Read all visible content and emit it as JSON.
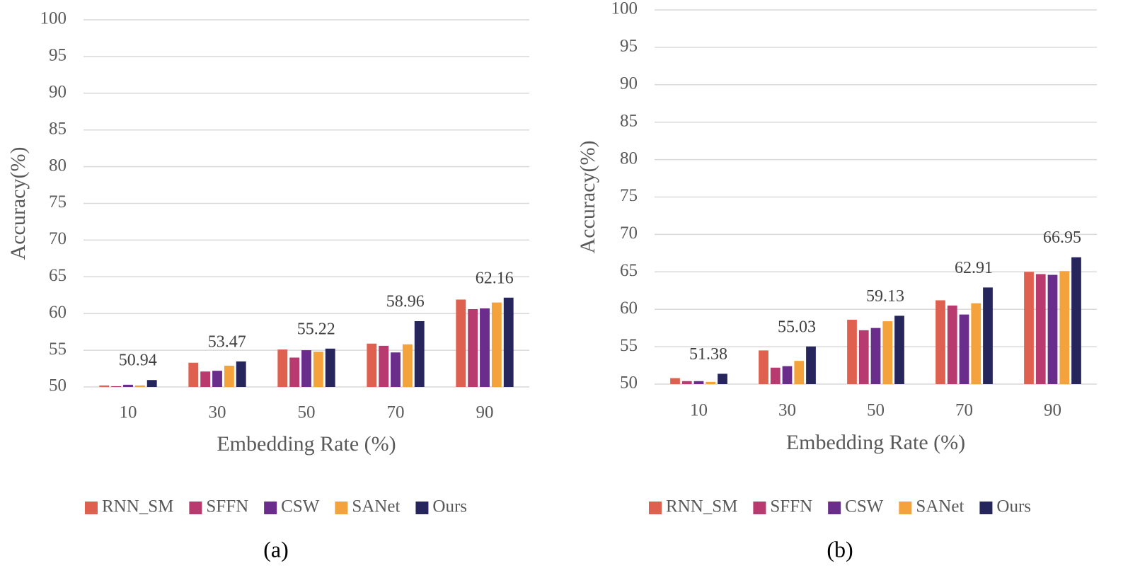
{
  "chart_data": [
    {
      "type": "bar",
      "caption": "(a)",
      "x_label": "Embedding Rate (%)",
      "y_label": "Accuracy(%)",
      "categories": [
        "10",
        "30",
        "50",
        "70",
        "90"
      ],
      "ylim": [
        50,
        100
      ],
      "yticks": [
        50,
        55,
        60,
        65,
        70,
        75,
        80,
        85,
        90,
        95,
        100
      ],
      "grid": true,
      "series": [
        {
          "name": "RNN_SM",
          "color": "#e0604f",
          "values": [
            50.2,
            53.3,
            55.1,
            55.9,
            61.9
          ]
        },
        {
          "name": "SFFN",
          "color": "#b83a6e",
          "values": [
            50.1,
            52.1,
            54.0,
            55.6,
            60.6
          ]
        },
        {
          "name": "CSW",
          "color": "#6a2d8c",
          "values": [
            50.3,
            52.2,
            55.0,
            54.7,
            60.7
          ]
        },
        {
          "name": "SANet",
          "color": "#f4a23c",
          "values": [
            50.2,
            52.9,
            54.8,
            55.8,
            61.5
          ]
        },
        {
          "name": "Ours",
          "color": "#26265c",
          "values": [
            50.94,
            53.47,
            55.22,
            58.96,
            62.16
          ],
          "show_labels": true
        }
      ]
    },
    {
      "type": "bar",
      "caption": "(b)",
      "x_label": "Embedding Rate (%)",
      "y_label": "Accuracy(%)",
      "categories": [
        "10",
        "30",
        "50",
        "70",
        "90"
      ],
      "ylim": [
        50,
        100
      ],
      "yticks": [
        50,
        55,
        60,
        65,
        70,
        75,
        80,
        85,
        90,
        95,
        100
      ],
      "grid": true,
      "series": [
        {
          "name": "RNN_SM",
          "color": "#e0604f",
          "values": [
            50.8,
            54.5,
            58.6,
            61.2,
            65.0
          ]
        },
        {
          "name": "SFFN",
          "color": "#b83a6e",
          "values": [
            50.4,
            52.2,
            57.2,
            60.5,
            64.7
          ]
        },
        {
          "name": "CSW",
          "color": "#6a2d8c",
          "values": [
            50.4,
            52.4,
            57.5,
            59.3,
            64.6
          ]
        },
        {
          "name": "SANet",
          "color": "#f4a23c",
          "values": [
            50.3,
            53.1,
            58.4,
            60.8,
            65.1
          ]
        },
        {
          "name": "Ours",
          "color": "#26265c",
          "values": [
            51.38,
            55.03,
            59.13,
            62.91,
            66.95
          ],
          "show_labels": true
        }
      ]
    }
  ]
}
